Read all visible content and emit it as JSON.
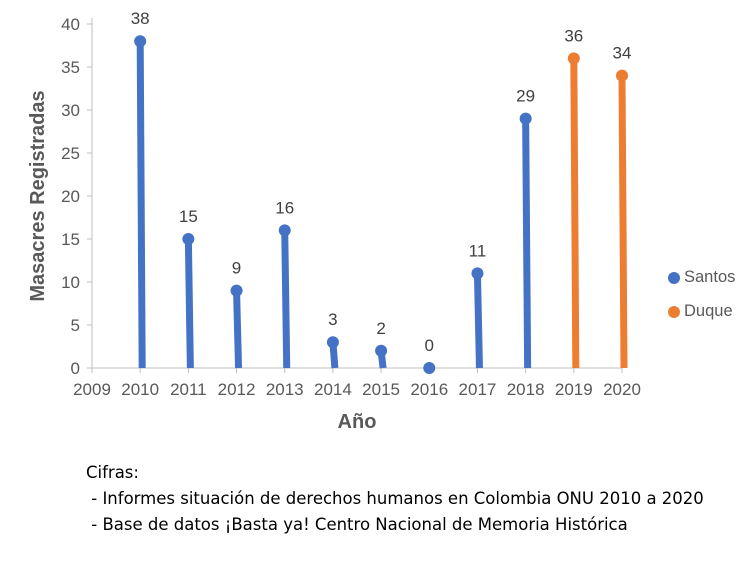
{
  "chart_data": {
    "type": "scatter",
    "xlabel": "Año",
    "ylabel": "Masacres Registradas",
    "xlim": [
      2009,
      2020
    ],
    "ylim": [
      0,
      40
    ],
    "x_ticks": [
      "2009",
      "2010",
      "2011",
      "2012",
      "2013",
      "2014",
      "2015",
      "2016",
      "2017",
      "2018",
      "2019",
      "2020"
    ],
    "y_ticks": [
      "0",
      "5",
      "10",
      "15",
      "20",
      "25",
      "30",
      "35",
      "40"
    ],
    "grid": false,
    "legend_position": "right",
    "series": [
      {
        "name": "Santos",
        "color": "#4472C4",
        "points": [
          {
            "x": 2010,
            "y": 38,
            "label": "38"
          },
          {
            "x": 2011,
            "y": 15,
            "label": "15"
          },
          {
            "x": 2012,
            "y": 9,
            "label": "9"
          },
          {
            "x": 2013,
            "y": 16,
            "label": "16"
          },
          {
            "x": 2014,
            "y": 3,
            "label": "3"
          },
          {
            "x": 2015,
            "y": 2,
            "label": "2"
          },
          {
            "x": 2016,
            "y": 0,
            "label": "0"
          },
          {
            "x": 2017,
            "y": 11,
            "label": "11"
          },
          {
            "x": 2018,
            "y": 29,
            "label": "29"
          }
        ]
      },
      {
        "name": "Duque",
        "color": "#ED7D31",
        "points": [
          {
            "x": 2019,
            "y": 36,
            "label": "36"
          },
          {
            "x": 2020,
            "y": 34,
            "label": "34"
          }
        ]
      }
    ]
  },
  "notes": {
    "heading": "Cifras:",
    "lines": [
      " - Informes situación de derechos humanos en Colombia ONU 2010 a 2020",
      " - Base de datos ¡Basta ya! Centro Nacional de Memoria Histórica"
    ]
  }
}
